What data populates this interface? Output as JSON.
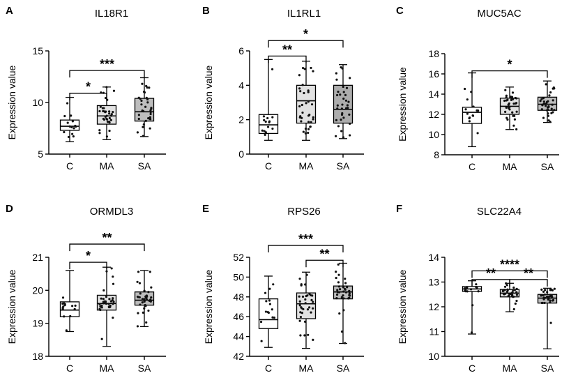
{
  "chart_data": [
    {
      "type": "box",
      "panel_label": "A",
      "title": "IL18R1",
      "xlabel": "",
      "ylabel": "Expression value",
      "categories": [
        "C",
        "MA",
        "SA"
      ],
      "ylim": [
        5,
        15
      ],
      "yticks": [
        5,
        10,
        15
      ],
      "box_fills": [
        "#ffffff",
        "#e2e2e2",
        "#bdbdbd"
      ],
      "boxes": [
        {
          "min": 6.2,
          "q1": 7.3,
          "median": 7.7,
          "q3": 8.3,
          "max": 10.5
        },
        {
          "min": 6.4,
          "q1": 7.9,
          "median": 8.7,
          "q3": 9.7,
          "max": 11.5
        },
        {
          "min": 6.7,
          "q1": 8.2,
          "median": 9.1,
          "q3": 10.4,
          "max": 12.4
        }
      ],
      "significance": [
        {
          "from": 0,
          "to": 1,
          "label": "*",
          "y": 10.9
        },
        {
          "from": 0,
          "to": 2,
          "label": "***",
          "y": 13.1
        }
      ]
    },
    {
      "type": "box",
      "panel_label": "B",
      "title": "IL1RL1",
      "xlabel": "",
      "ylabel": "Expression value",
      "categories": [
        "C",
        "MA",
        "SA"
      ],
      "ylim": [
        0,
        6
      ],
      "yticks": [
        0,
        2,
        4,
        6
      ],
      "box_fills": [
        "#ffffff",
        "#e2e2e2",
        "#adadad"
      ],
      "boxes": [
        {
          "min": 0.8,
          "q1": 1.2,
          "median": 1.7,
          "q3": 2.3,
          "max": 5.5
        },
        {
          "min": 0.8,
          "q1": 1.8,
          "median": 3.1,
          "q3": 4.0,
          "max": 5.4
        },
        {
          "min": 0.9,
          "q1": 1.8,
          "median": 2.6,
          "q3": 4.0,
          "max": 5.2
        }
      ],
      "significance": [
        {
          "from": 0,
          "to": 1,
          "label": "**",
          "y": 5.7
        },
        {
          "from": 0,
          "to": 2,
          "label": "*",
          "y": 6.6
        }
      ]
    },
    {
      "type": "box",
      "panel_label": "C",
      "title": "MUC5AC",
      "xlabel": "",
      "ylabel": "Expression value",
      "categories": [
        "C",
        "MA",
        "SA"
      ],
      "ylim": [
        8,
        18
      ],
      "yticks": [
        8,
        10,
        12,
        14,
        16,
        18
      ],
      "box_fills": [
        "#ffffff",
        "#e2e2e2",
        "#bdbdbd"
      ],
      "boxes": [
        {
          "min": 8.8,
          "q1": 11.1,
          "median": 12.2,
          "q3": 12.7,
          "max": 16.1
        },
        {
          "min": 10.5,
          "q1": 12.0,
          "median": 12.8,
          "q3": 13.6,
          "max": 14.7
        },
        {
          "min": 11.2,
          "q1": 12.4,
          "median": 13.0,
          "q3": 13.7,
          "max": 15.3
        }
      ],
      "significance": [
        {
          "from": 0,
          "to": 2,
          "label": "*",
          "y": 16.3
        }
      ]
    },
    {
      "type": "box",
      "panel_label": "D",
      "title": "ORMDL3",
      "xlabel": "",
      "ylabel": "Expression value",
      "categories": [
        "C",
        "MA",
        "SA"
      ],
      "ylim": [
        18,
        21
      ],
      "yticks": [
        18,
        19,
        20,
        21
      ],
      "box_fills": [
        "#ffffff",
        "#e2e2e2",
        "#bdbdbd"
      ],
      "boxes": [
        {
          "min": 18.75,
          "q1": 19.2,
          "median": 19.4,
          "q3": 19.65,
          "max": 20.6
        },
        {
          "min": 18.3,
          "q1": 19.4,
          "median": 19.6,
          "q3": 19.85,
          "max": 20.7
        },
        {
          "min": 18.9,
          "q1": 19.55,
          "median": 19.7,
          "q3": 19.95,
          "max": 20.6
        }
      ],
      "significance": [
        {
          "from": 0,
          "to": 1,
          "label": "*",
          "y": 20.85
        },
        {
          "from": 0,
          "to": 2,
          "label": "**",
          "y": 21.4
        }
      ]
    },
    {
      "type": "box",
      "panel_label": "E",
      "title": "RPS26",
      "xlabel": "",
      "ylabel": "Expression value",
      "categories": [
        "C",
        "MA",
        "SA"
      ],
      "ylim": [
        42,
        52
      ],
      "yticks": [
        42,
        44,
        46,
        48,
        50,
        52
      ],
      "box_fills": [
        "#ffffff",
        "#e2e2e2",
        "#bdbdbd"
      ],
      "boxes": [
        {
          "min": 42.9,
          "q1": 44.8,
          "median": 45.7,
          "q3": 47.8,
          "max": 50.1
        },
        {
          "min": 42.8,
          "q1": 45.8,
          "median": 47.3,
          "q3": 48.4,
          "max": 50.5
        },
        {
          "min": 43.3,
          "q1": 47.8,
          "median": 48.5,
          "q3": 49.1,
          "max": 51.4
        }
      ],
      "significance": [
        {
          "from": 1,
          "to": 2,
          "label": "**",
          "y": 51.7
        },
        {
          "from": 0,
          "to": 2,
          "label": "***",
          "y": 53.2
        }
      ]
    },
    {
      "type": "box",
      "panel_label": "F",
      "title": "SLC22A4",
      "xlabel": "",
      "ylabel": "Expression value",
      "categories": [
        "C",
        "MA",
        "SA"
      ],
      "ylim": [
        10,
        14
      ],
      "yticks": [
        10,
        11,
        12,
        13,
        14
      ],
      "box_fills": [
        "#ffffff",
        "#e2e2e2",
        "#bdbdbd"
      ],
      "boxes": [
        {
          "min": 10.9,
          "q1": 12.62,
          "median": 12.72,
          "q3": 12.82,
          "max": 13.05
        },
        {
          "min": 11.8,
          "q1": 12.4,
          "median": 12.55,
          "q3": 12.7,
          "max": 12.95
        },
        {
          "min": 10.3,
          "q1": 12.15,
          "median": 12.35,
          "q3": 12.5,
          "max": 12.75
        }
      ],
      "significance": [
        {
          "from": 0,
          "to": 1,
          "label": "**",
          "y": 13.1
        },
        {
          "from": 1,
          "to": 2,
          "label": "**",
          "y": 13.1
        },
        {
          "from": 0,
          "to": 2,
          "label": "****",
          "y": 13.45
        }
      ]
    }
  ]
}
